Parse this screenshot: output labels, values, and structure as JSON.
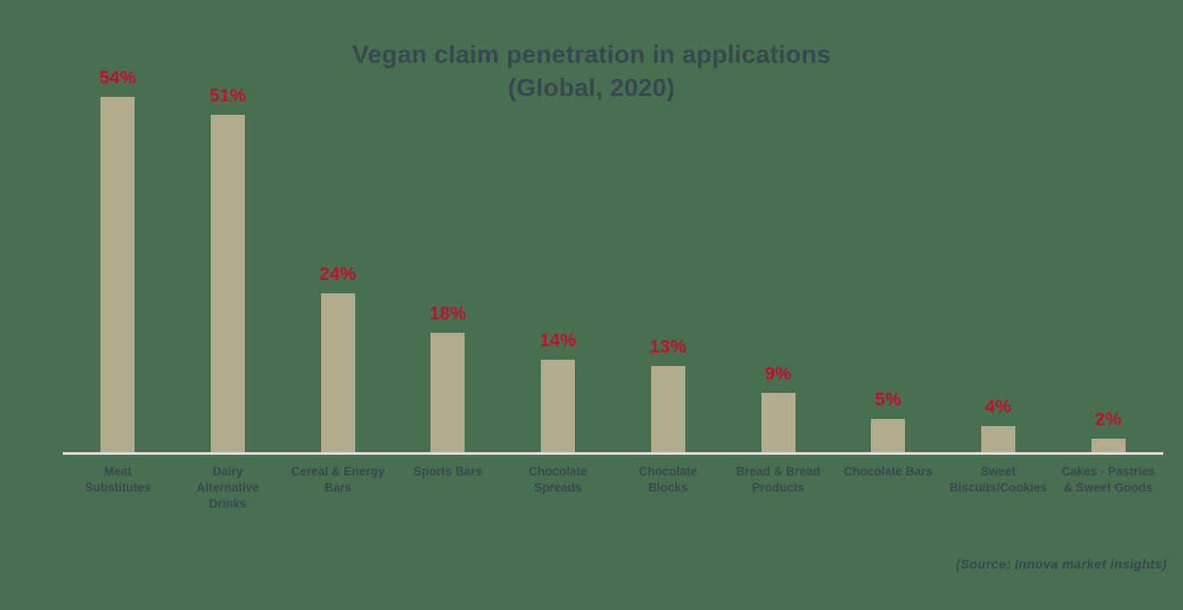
{
  "page": {
    "background": "#487050"
  },
  "chart_data": {
    "type": "bar",
    "title": "Vegan claim penetration in applications",
    "subtitle": "(Global, 2020)",
    "categories": [
      "Meat Substitutes",
      "Dairy Alternative Drinks",
      "Cereal & Energy Bars",
      "Sports Bars",
      "Chocolate Spreads",
      "Chocolate Blocks",
      "Bread & Bread Products",
      "Chocolate Bars",
      "Sweet Biscuits/Cookies",
      "Cakes - Pastries & Sweet Goods"
    ],
    "categories_display": [
      "Meat\nSubstitutes",
      "Dairy\nAlternative\nDrinks",
      "Cereal & Energy\nBars",
      "Sports Bars",
      "Chocolate\nSpreads",
      "Chocolate\nBlocks",
      "Bread & Bread\nProducts",
      "Chocolate Bars",
      "Sweet\nBiscuits/Cookies",
      "Cakes - Pastries\n& Sweet Goods"
    ],
    "values": [
      54,
      51,
      24,
      18,
      14,
      13,
      9,
      5,
      4,
      2
    ],
    "value_suffix": "%",
    "unit": "percent",
    "ylim": [
      0,
      58
    ],
    "grid": false,
    "y_axis_visible": false,
    "x_axis_line_visible": true,
    "data_labels_position": "above-bars",
    "legend": "none",
    "colors": {
      "background": "#487050",
      "bar": "#b2ac8c",
      "value_label": "#c30e2d",
      "text": "#394850",
      "axis_line": "#d9dad4"
    }
  },
  "source_note": "(Source: Innova market insights)"
}
